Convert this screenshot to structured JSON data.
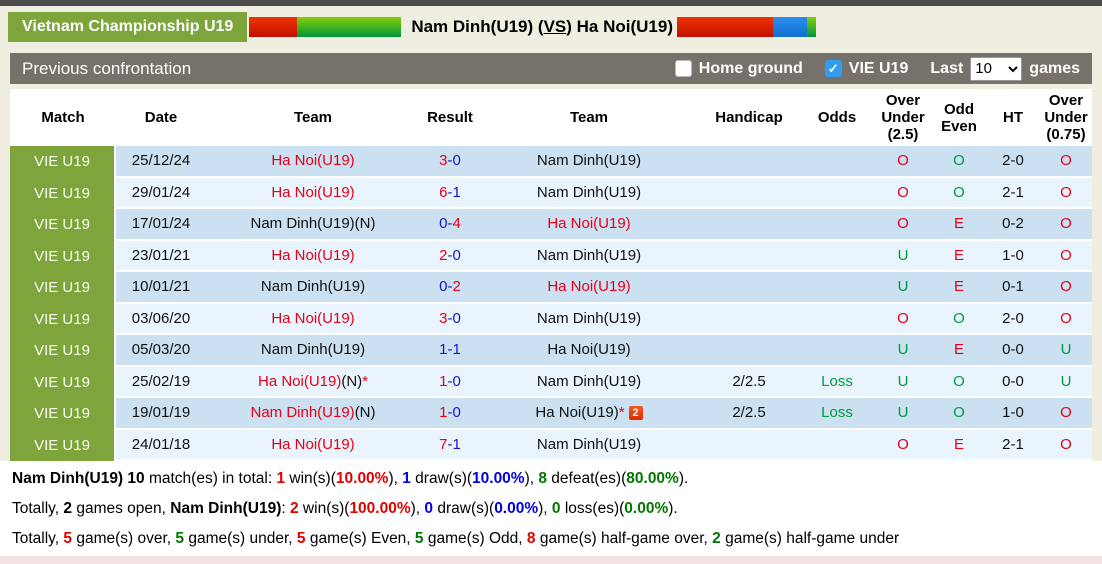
{
  "header": {
    "league": "Vietnam Championship U19",
    "home_team": "Nam Dinh(U19)",
    "vs_label": "VS",
    "away_team": "Ha Noi(U19)"
  },
  "toolbar": {
    "section_title": "Previous confrontation",
    "home_ground_label": "Home ground",
    "vie_label": "VIE U19",
    "last_label": "Last",
    "last_value": "10",
    "games_label": "games",
    "check_glyph": "✓"
  },
  "icons": {
    "video": "2"
  },
  "colors": {
    "league_green": "#7da53c",
    "row_dark": "#cbe0f0",
    "row_light": "#e9f4fc",
    "bar_grey": "#76716a",
    "red": "#e50019",
    "blue": "#1616c8",
    "green": "#009a44"
  },
  "table": {
    "columns": [
      "Match",
      "Date",
      "Team",
      "Result",
      "Team",
      "Handicap",
      "Odds",
      "Over Under (2.5)",
      "Odd Even",
      "HT",
      "Over Under (0.75)"
    ],
    "rows": [
      {
        "match": "VIE U19",
        "date": "25/12/24",
        "team1": [
          [
            "Ha Noi(U19)",
            "red"
          ]
        ],
        "result": [
          [
            "3",
            "red"
          ],
          [
            "-0",
            "blue"
          ]
        ],
        "team2": [
          [
            "Nam Dinh(U19)",
            "black"
          ]
        ],
        "handicap": "",
        "odds": [],
        "ou25": [
          "O",
          "red"
        ],
        "oe": [
          "O",
          "green"
        ],
        "ht": "2-0",
        "ou075": [
          "O",
          "red"
        ]
      },
      {
        "match": "VIE U19",
        "date": "29/01/24",
        "team1": [
          [
            "Ha Noi(U19)",
            "red"
          ]
        ],
        "result": [
          [
            "6",
            "red"
          ],
          [
            "-1",
            "blue"
          ]
        ],
        "team2": [
          [
            "Nam Dinh(U19)",
            "black"
          ]
        ],
        "handicap": "",
        "odds": [],
        "ou25": [
          "O",
          "red"
        ],
        "oe": [
          "O",
          "green"
        ],
        "ht": "2-1",
        "ou075": [
          "O",
          "red"
        ]
      },
      {
        "match": "VIE U19",
        "date": "17/01/24",
        "team1": [
          [
            "Nam Dinh(U19)(N)",
            "black"
          ]
        ],
        "result": [
          [
            "0-",
            "blue"
          ],
          [
            "4",
            "red"
          ]
        ],
        "team2": [
          [
            "Ha Noi(U19)",
            "red"
          ]
        ],
        "handicap": "",
        "odds": [],
        "ou25": [
          "O",
          "red"
        ],
        "oe": [
          "E",
          "red"
        ],
        "ht": "0-2",
        "ou075": [
          "O",
          "red"
        ]
      },
      {
        "match": "VIE U19",
        "date": "23/01/21",
        "team1": [
          [
            "Ha Noi(U19)",
            "red"
          ]
        ],
        "result": [
          [
            "2",
            "red"
          ],
          [
            "-0",
            "blue"
          ]
        ],
        "team2": [
          [
            "Nam Dinh(U19)",
            "black"
          ]
        ],
        "handicap": "",
        "odds": [],
        "ou25": [
          "U",
          "green"
        ],
        "oe": [
          "E",
          "red"
        ],
        "ht": "1-0",
        "ou075": [
          "O",
          "red"
        ]
      },
      {
        "match": "VIE U19",
        "date": "10/01/21",
        "team1": [
          [
            "Nam Dinh(U19)",
            "black"
          ]
        ],
        "result": [
          [
            "0-",
            "blue"
          ],
          [
            "2",
            "red"
          ]
        ],
        "team2": [
          [
            "Ha Noi(U19)",
            "red"
          ]
        ],
        "handicap": "",
        "odds": [],
        "ou25": [
          "U",
          "green"
        ],
        "oe": [
          "E",
          "red"
        ],
        "ht": "0-1",
        "ou075": [
          "O",
          "red"
        ]
      },
      {
        "match": "VIE U19",
        "date": "03/06/20",
        "team1": [
          [
            "Ha Noi(U19)",
            "red"
          ]
        ],
        "result": [
          [
            "3",
            "red"
          ],
          [
            "-0",
            "blue"
          ]
        ],
        "team2": [
          [
            "Nam Dinh(U19)",
            "black"
          ]
        ],
        "handicap": "",
        "odds": [],
        "ou25": [
          "O",
          "red"
        ],
        "oe": [
          "O",
          "green"
        ],
        "ht": "2-0",
        "ou075": [
          "O",
          "red"
        ]
      },
      {
        "match": "VIE U19",
        "date": "05/03/20",
        "team1": [
          [
            "Nam Dinh(U19)",
            "black"
          ]
        ],
        "result": [
          [
            "1-1",
            "blue"
          ]
        ],
        "team2": [
          [
            "Ha Noi(U19)",
            "black"
          ]
        ],
        "handicap": "",
        "odds": [],
        "ou25": [
          "U",
          "green"
        ],
        "oe": [
          "E",
          "red"
        ],
        "ht": "0-0",
        "ou075": [
          "U",
          "green"
        ]
      },
      {
        "match": "VIE U19",
        "date": "25/02/19",
        "team1": [
          [
            "Ha Noi(U19)",
            "red"
          ],
          [
            "(N)",
            "black"
          ],
          [
            "*",
            "red"
          ]
        ],
        "result": [
          [
            "1",
            "red"
          ],
          [
            "-0",
            "blue"
          ]
        ],
        "team2": [
          [
            "Nam Dinh(U19)",
            "black"
          ]
        ],
        "handicap": "2/2.5",
        "odds": [
          [
            "Loss",
            "green"
          ]
        ],
        "ou25": [
          "U",
          "green"
        ],
        "oe": [
          "O",
          "green"
        ],
        "ht": "0-0",
        "ou075": [
          "U",
          "green"
        ]
      },
      {
        "match": "VIE U19",
        "date": "19/01/19",
        "team1": [
          [
            "Nam Dinh(U19)",
            "red"
          ],
          [
            "(N)",
            "black"
          ]
        ],
        "result": [
          [
            "1",
            "red"
          ],
          [
            "-0",
            "blue"
          ]
        ],
        "team2": [
          [
            "Ha Noi(U19)",
            "black"
          ],
          [
            "*",
            "red"
          ]
        ],
        "team2_icon": true,
        "handicap": "2/2.5",
        "odds": [
          [
            "Loss",
            "green"
          ]
        ],
        "ou25": [
          "U",
          "green"
        ],
        "oe": [
          "O",
          "green"
        ],
        "ht": "1-0",
        "ou075": [
          "O",
          "red"
        ]
      },
      {
        "match": "VIE U19",
        "date": "24/01/18",
        "team1": [
          [
            "Ha Noi(U19)",
            "red"
          ]
        ],
        "result": [
          [
            "7",
            "red"
          ],
          [
            "-1",
            "blue"
          ]
        ],
        "team2": [
          [
            "Nam Dinh(U19)",
            "black"
          ]
        ],
        "handicap": "",
        "odds": [],
        "ou25": [
          "O",
          "red"
        ],
        "oe": [
          "E",
          "red"
        ],
        "ht": "2-1",
        "ou075": [
          "O",
          "red"
        ]
      }
    ]
  },
  "summary": {
    "lines": [
      [
        [
          "Nam Dinh(U19) ",
          "b"
        ],
        [
          "10",
          "b"
        ],
        [
          " match(es) in total: ",
          ""
        ],
        [
          "1",
          "rb"
        ],
        [
          " win(s)(",
          ""
        ],
        [
          "10.00%",
          "rb"
        ],
        [
          "), ",
          ""
        ],
        [
          "1",
          "bb"
        ],
        [
          " draw(s)(",
          ""
        ],
        [
          "10.00%",
          "bb"
        ],
        [
          "), ",
          ""
        ],
        [
          "8",
          "gb"
        ],
        [
          " defeat(es)(",
          ""
        ],
        [
          "80.00%",
          "gb"
        ],
        [
          ").",
          ""
        ]
      ],
      [
        [
          "Totally, ",
          ""
        ],
        [
          "2",
          "b"
        ],
        [
          " games open, ",
          ""
        ],
        [
          "Nam Dinh(U19)",
          "b"
        ],
        [
          ": ",
          ""
        ],
        [
          "2",
          "rb"
        ],
        [
          " win(s)(",
          ""
        ],
        [
          "100.00%",
          "rb"
        ],
        [
          "), ",
          ""
        ],
        [
          "0",
          "bb"
        ],
        [
          " draw(s)(",
          ""
        ],
        [
          "0.00%",
          "bb"
        ],
        [
          "), ",
          ""
        ],
        [
          "0",
          "gb"
        ],
        [
          " loss(es)(",
          ""
        ],
        [
          "0.00%",
          "gb"
        ],
        [
          ").",
          ""
        ]
      ],
      [
        [
          "Totally, ",
          ""
        ],
        [
          "5",
          "rb"
        ],
        [
          " game(s) over, ",
          ""
        ],
        [
          "5",
          "gb"
        ],
        [
          " game(s) under, ",
          ""
        ],
        [
          "5",
          "rb"
        ],
        [
          " game(s) Even, ",
          ""
        ],
        [
          "5",
          "gb"
        ],
        [
          " game(s) Odd, ",
          ""
        ],
        [
          "8",
          "rb"
        ],
        [
          " game(s) half-game over, ",
          ""
        ],
        [
          "2",
          "gb"
        ],
        [
          " game(s) half-game under",
          ""
        ]
      ]
    ]
  }
}
